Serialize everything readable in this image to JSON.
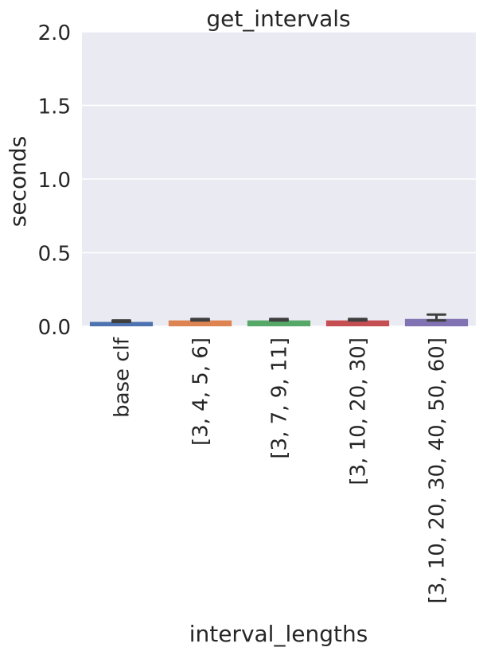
{
  "chart_data": {
    "type": "bar",
    "title": "get_intervals",
    "xlabel": "interval_lengths",
    "ylabel": "seconds",
    "ylim": [
      0,
      2.0
    ],
    "yticks": [
      "0.0",
      "0.5",
      "1.0",
      "1.5",
      "2.0"
    ],
    "ytick_values": [
      0,
      0.5,
      1.0,
      1.5,
      2.0
    ],
    "grid": true,
    "categories": [
      "base clf",
      "[3, 4, 5, 6]",
      "[3, 7, 9, 11]",
      "[3, 10, 20, 30]",
      "[3, 10, 20, 30, 40, 50, 60]"
    ],
    "values": [
      0.03,
      0.04,
      0.04,
      0.04,
      0.05
    ],
    "error_low": [
      0.03,
      0.04,
      0.04,
      0.04,
      0.04
    ],
    "error_high": [
      0.04,
      0.05,
      0.05,
      0.05,
      0.08
    ],
    "colors": [
      "#4c72b0",
      "#dd8452",
      "#55a868",
      "#c44e52",
      "#8172b3"
    ],
    "plot_background": "#eaeaf2",
    "error_color": "#3f3f3f"
  }
}
